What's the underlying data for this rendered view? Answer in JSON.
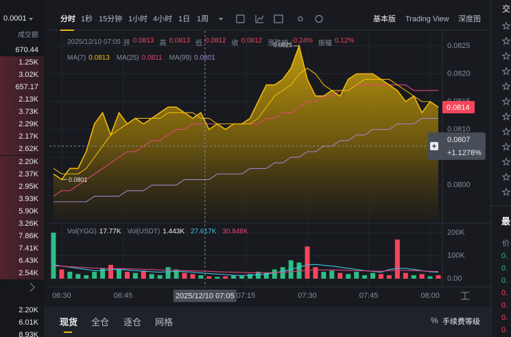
{
  "left_panel": {
    "precision": "0.0001",
    "header": "成交额",
    "asks": [
      "670.44",
      "1.25K",
      "3.02K",
      "657.17",
      "2.13K",
      "3.73K",
      "2.29K",
      "2.17K",
      "2.62K",
      "2.20K",
      "2.37K",
      "2.95K",
      "3.93K",
      "5.90K",
      "3.26K",
      "7.86K",
      "7.41K",
      "6.43K",
      "2.54K"
    ],
    "bids": [
      "2.20K",
      "6.01K",
      "8.93K"
    ]
  },
  "toolbar": {
    "intervals": [
      "分时",
      "1秒",
      "15分钟",
      "1小时",
      "4小时",
      "1日",
      "1周"
    ],
    "views": [
      "基本版",
      "Trading View",
      "深度图"
    ]
  },
  "chart_data": [
    {
      "type": "area",
      "info": {
        "date": "2025/12/10 07:05",
        "fields": [
          {
            "label": "开",
            "value": 0.0813
          },
          {
            "label": "高",
            "value": 0.0813
          },
          {
            "label": "低",
            "value": 0.0812
          },
          {
            "label": "收",
            "value": 0.0812
          },
          {
            "label": "涨跌幅",
            "value": "-0.24%"
          },
          {
            "label": "振幅",
            "value": "0.12%"
          }
        ]
      },
      "x": [
        "06:28",
        "06:30",
        "06:32",
        "06:34",
        "06:36",
        "06:38",
        "06:40",
        "06:42",
        "06:44",
        "06:46",
        "06:48",
        "06:50",
        "06:52",
        "06:54",
        "06:56",
        "06:58",
        "07:00",
        "07:02",
        "07:04",
        "07:06",
        "07:08",
        "07:10",
        "07:12",
        "07:14",
        "07:16",
        "07:18",
        "07:20",
        "07:22",
        "07:24",
        "07:26",
        "07:28",
        "07:30",
        "07:32",
        "07:34",
        "07:36",
        "07:38",
        "07:40",
        "07:42",
        "07:44",
        "07:46",
        "07:48",
        "07:50",
        "07:52",
        "07:54",
        "07:56",
        "07:58",
        "08:00",
        "08:02"
      ],
      "values": [
        0.0802,
        0.0801,
        0.0803,
        0.0803,
        0.0806,
        0.0811,
        0.0813,
        0.0809,
        0.0813,
        0.0811,
        0.0812,
        0.0811,
        0.0812,
        0.0813,
        0.0814,
        0.0814,
        0.0813,
        0.0812,
        0.0813,
        0.081,
        0.0811,
        0.081,
        0.0811,
        0.0811,
        0.0812,
        0.0815,
        0.0818,
        0.0818,
        0.0819,
        0.0821,
        0.0825,
        0.0819,
        0.0816,
        0.0816,
        0.0817,
        0.0816,
        0.0819,
        0.082,
        0.082,
        0.082,
        0.0819,
        0.0818,
        0.0817,
        0.0815,
        0.0816,
        0.0813,
        0.0815,
        0.0814
      ],
      "color": "#f0b90b",
      "series": [
        {
          "name": "MA(7)",
          "legend_value": 0.0813,
          "color": "#f0b90b",
          "values": [
            0.0803,
            0.0802,
            0.0802,
            0.0802,
            0.0803,
            0.0805,
            0.0807,
            0.0809,
            0.081,
            0.0811,
            0.0812,
            0.0812,
            0.0812,
            0.0812,
            0.0813,
            0.0813,
            0.0813,
            0.0813,
            0.0812,
            0.0812,
            0.0811,
            0.0811,
            0.0811,
            0.0811,
            0.0811,
            0.0812,
            0.0814,
            0.0816,
            0.0817,
            0.0818,
            0.082,
            0.0821,
            0.082,
            0.0818,
            0.0817,
            0.0817,
            0.0817,
            0.0818,
            0.0819,
            0.0819,
            0.0819,
            0.0819,
            0.0818,
            0.0817,
            0.0816,
            0.0815,
            0.0815,
            0.0814
          ]
        },
        {
          "name": "MA(25)",
          "legend_value": 0.0811,
          "color": "#e2457c",
          "values": [
            0.0798,
            0.0799,
            0.0799,
            0.08,
            0.0801,
            0.0802,
            0.0803,
            0.0804,
            0.0805,
            0.0806,
            0.0806,
            0.0807,
            0.0808,
            0.0808,
            0.0809,
            0.081,
            0.081,
            0.0811,
            0.0811,
            0.0811,
            0.0811,
            0.0811,
            0.0811,
            0.0811,
            0.0811,
            0.0811,
            0.0812,
            0.0812,
            0.0813,
            0.0813,
            0.0814,
            0.0815,
            0.0815,
            0.0816,
            0.0816,
            0.0817,
            0.0817,
            0.0818,
            0.0818,
            0.0818,
            0.0818,
            0.0818,
            0.0818,
            0.0818,
            0.0817,
            0.0817,
            0.0817,
            0.0817
          ]
        },
        {
          "name": "MA(99)",
          "legend_value": 0.0801,
          "color": "#a285c9",
          "values": [
            0.0797,
            0.0797,
            0.0797,
            0.0797,
            0.0797,
            0.0798,
            0.0798,
            0.0798,
            0.0798,
            0.0799,
            0.0799,
            0.0799,
            0.08,
            0.08,
            0.08,
            0.08,
            0.0801,
            0.0801,
            0.0801,
            0.0801,
            0.0802,
            0.0802,
            0.0802,
            0.0802,
            0.0803,
            0.0803,
            0.0803,
            0.0804,
            0.0804,
            0.0805,
            0.0805,
            0.0806,
            0.0806,
            0.0807,
            0.0807,
            0.0808,
            0.0808,
            0.0809,
            0.0809,
            0.081,
            0.081,
            0.081,
            0.0811,
            0.0811,
            0.0811,
            0.0812,
            0.0812,
            0.0812
          ]
        }
      ],
      "annotations": [
        {
          "x": "07:28",
          "value": 0.0825
        },
        {
          "x": "06:30",
          "value": 0.0801
        }
      ],
      "last_price": 0.0814,
      "last_price_color": "#f6465d",
      "crosshair": {
        "y": 0.0807,
        "change": "+1.1278%"
      },
      "xlim": [
        "06:27",
        "08:03"
      ],
      "xticks": [
        "06:30",
        "06:45",
        "07:15",
        "07:30",
        "07:45",
        "08:00"
      ],
      "ylim": [
        0.07938,
        0.08277
      ],
      "yticks": [
        {
          "value": 0.08,
          "label": "0.0800"
        },
        0.0805,
        {
          "value": 0.081,
          "label": "0.0810"
        },
        0.0815,
        {
          "value": 0.082,
          "label": "0.0820"
        },
        0.0825
      ],
      "grid": true
    },
    {
      "type": "bar",
      "legend": [
        {
          "name": "Vol(YGG)",
          "value": "17.77K"
        },
        {
          "name": "Vol(USDT)",
          "value": "1.443K"
        }
      ],
      "values": [
        200000,
        40000,
        30000,
        20000,
        15000,
        30000,
        45000,
        60000,
        40000,
        30000,
        25000,
        35000,
        20000,
        15000,
        50000,
        40000,
        25000,
        20000,
        15000,
        10000,
        8000,
        10000,
        15000,
        12000,
        20000,
        30000,
        25000,
        40000,
        50000,
        80000,
        70000,
        140000,
        50000,
        30000,
        35000,
        25000,
        20000,
        30000,
        15000,
        25000,
        20000,
        15000,
        170000,
        25000,
        15000,
        20000,
        10000,
        15000
      ],
      "up_color": "#2ebd85",
      "down_color": "#f6465d",
      "series": [
        {
          "name": "27.617K",
          "color": "#3cc6e6",
          "values": [
            60000,
            55000,
            50000,
            45000,
            40000,
            35000,
            35000,
            40000,
            40000,
            38000,
            35000,
            33000,
            30000,
            28000,
            30000,
            32000,
            30000,
            28000,
            25000,
            22000,
            20000,
            18000,
            15000,
            14000,
            15000,
            17000,
            20000,
            25000,
            32000,
            40000,
            50000,
            60000,
            62000,
            58000,
            55000,
            50000,
            45000,
            40000,
            35000,
            32000,
            28000,
            40000,
            45000,
            45000,
            40000,
            35000,
            30000,
            28000
          ]
        },
        {
          "name": "30.848K",
          "color": "#e2457c",
          "values": [
            55000,
            55000,
            52000,
            50000,
            48000,
            46000,
            45000,
            44000,
            44000,
            43000,
            42000,
            41000,
            40000,
            38000,
            37000,
            36000,
            35000,
            34000,
            33000,
            32000,
            30000,
            29000,
            28000,
            27000,
            26000,
            26000,
            26000,
            27000,
            28000,
            30000,
            33000,
            36000,
            38000,
            38000,
            38000,
            37000,
            36000,
            35000,
            34000,
            33000,
            32000,
            35000,
            36000,
            36000,
            35000,
            34000,
            32000,
            31000
          ]
        }
      ],
      "ylim": [
        -12000,
        230000
      ],
      "yticks": [
        {
          "value": 0,
          "label": "0.00"
        },
        {
          "value": 100000,
          "label": "100K"
        },
        {
          "value": 200000,
          "label": "200K"
        }
      ]
    }
  ],
  "bottom_tabs": {
    "tabs": [
      "现货",
      "全仓",
      "逐仓",
      "网格"
    ],
    "fee_icon": "%",
    "fee": "手续费等级"
  },
  "right_panel": {
    "title": "交",
    "section": "最",
    "column": "价",
    "prices": [
      "0.",
      "0.",
      "0.",
      "0.",
      "0.",
      "0.",
      "0."
    ]
  }
}
